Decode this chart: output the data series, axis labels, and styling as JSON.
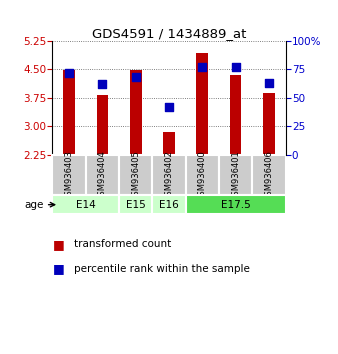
{
  "title": "GDS4591 / 1434889_at",
  "samples": [
    "GSM936403",
    "GSM936404",
    "GSM936405",
    "GSM936402",
    "GSM936400",
    "GSM936401",
    "GSM936406"
  ],
  "transformed_counts": [
    4.47,
    3.82,
    4.47,
    2.85,
    4.92,
    4.35,
    3.87
  ],
  "percentile_ranks": [
    72,
    62,
    68,
    42,
    77,
    77,
    63
  ],
  "ylim_left": [
    2.25,
    5.25
  ],
  "ylim_right": [
    0,
    100
  ],
  "yticks_left": [
    2.25,
    3.0,
    3.75,
    4.5,
    5.25
  ],
  "yticks_right": [
    0,
    25,
    50,
    75,
    100
  ],
  "bar_color": "#bb0000",
  "dot_color": "#0000bb",
  "age_groups": [
    {
      "label": "E14",
      "xstart": 0,
      "xend": 2,
      "color": "#ccffcc"
    },
    {
      "label": "E15",
      "xstart": 2,
      "xend": 3,
      "color": "#ccffcc"
    },
    {
      "label": "E16",
      "xstart": 3,
      "xend": 4,
      "color": "#ccffcc"
    },
    {
      "label": "E17.5",
      "xstart": 4,
      "xend": 7,
      "color": "#55dd55"
    }
  ],
  "bar_width": 0.35,
  "dot_size": 40,
  "ylabel_left_color": "#cc0000",
  "ylabel_right_color": "#0000cc",
  "grid_color": "#555555",
  "sample_bg_color": "#cccccc",
  "legend_items": [
    "transformed count",
    "percentile rank within the sample"
  ]
}
